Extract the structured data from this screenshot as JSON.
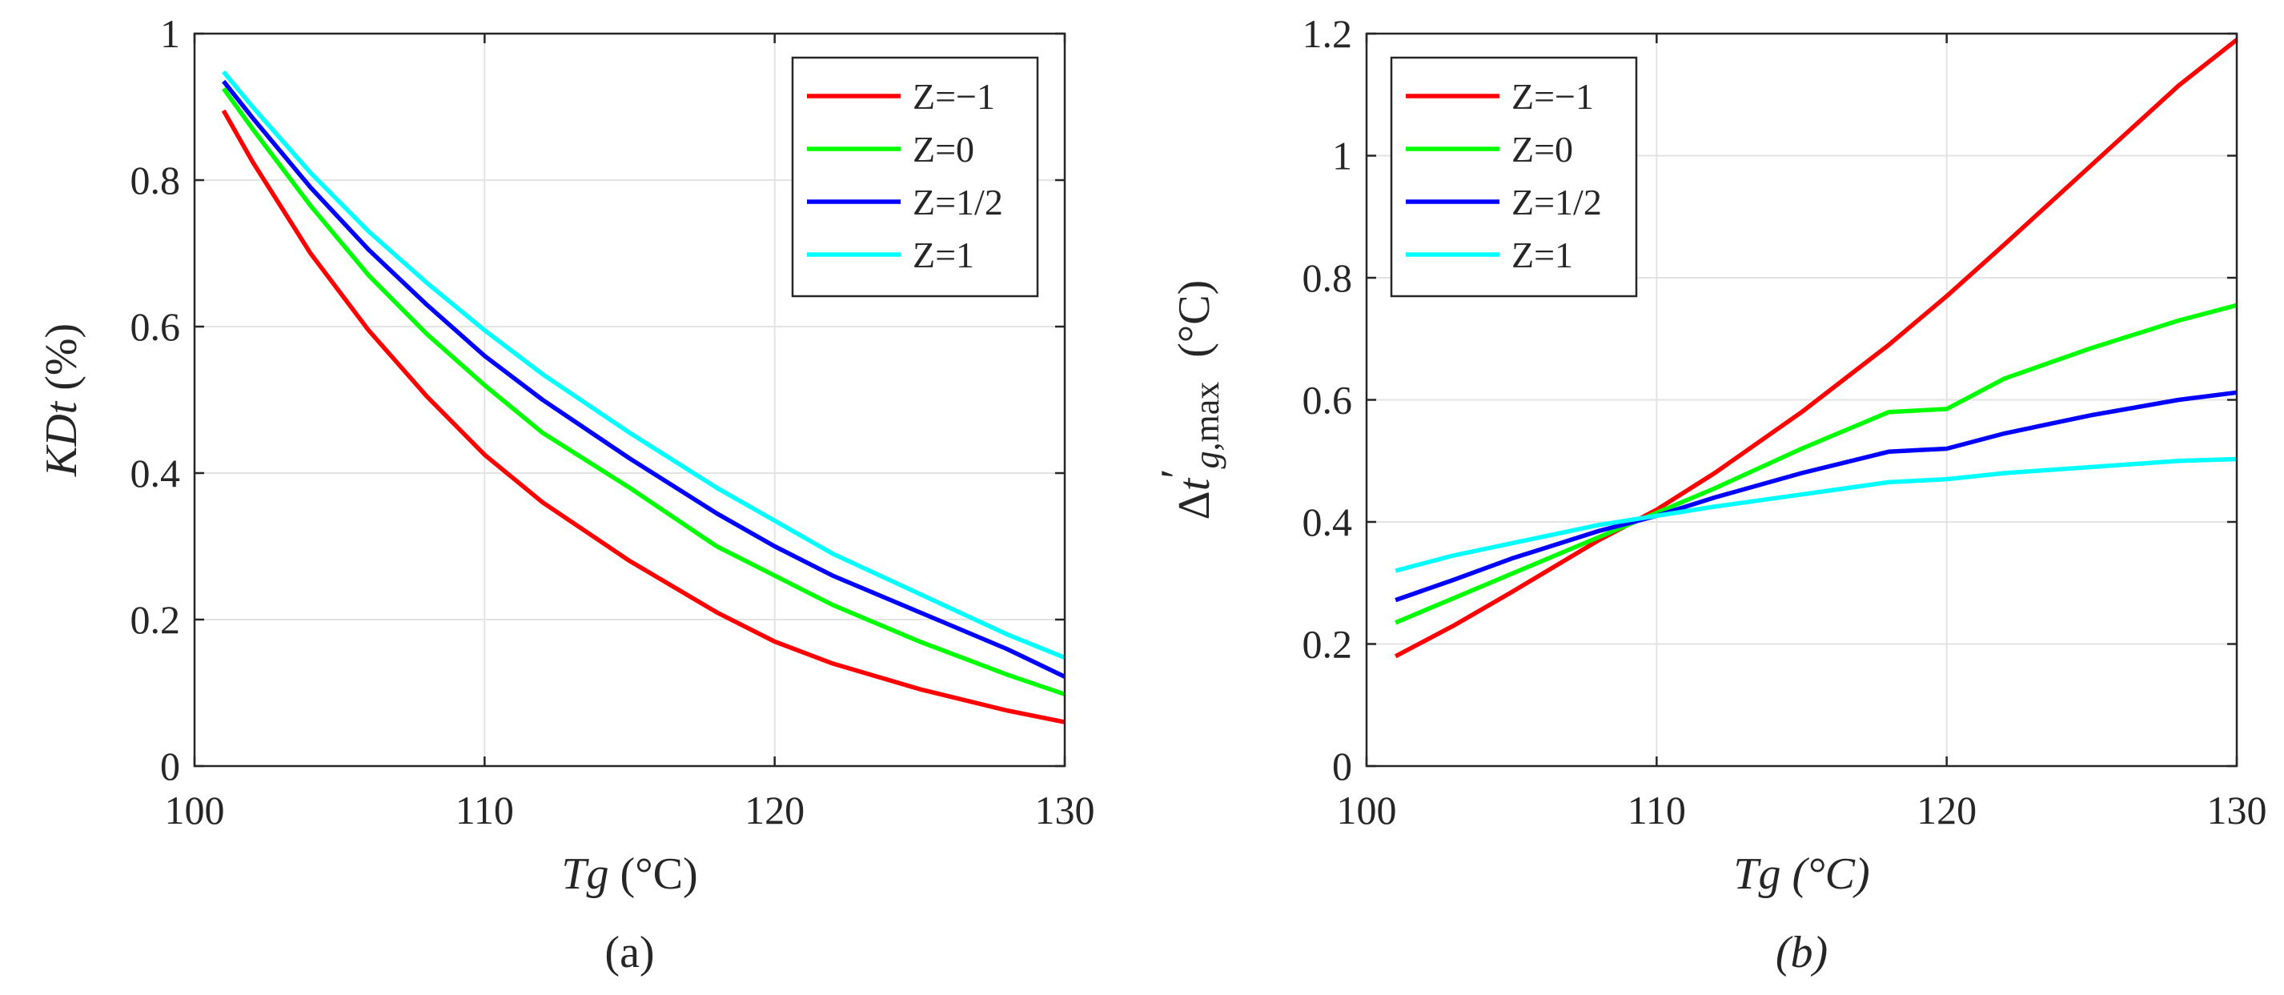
{
  "colors": {
    "series": [
      "#ff0000",
      "#00ff00",
      "#0000ff",
      "#00ffff"
    ],
    "axis": "#262626",
    "grid": "#e3e3e3"
  },
  "chart_data": [
    {
      "id": "a",
      "type": "line",
      "caption": "(a)",
      "xlabel": {
        "italic": "Tg",
        "unit": " (°C)"
      },
      "ylabel": {
        "italic": "KDt",
        "unit": " (%)"
      },
      "xlim": [
        100,
        130
      ],
      "ylim": [
        0,
        1
      ],
      "xticks": [
        "100",
        "110",
        "120",
        "130"
      ],
      "yticks": [
        "0",
        "0.2",
        "0.4",
        "0.6",
        "0.8",
        "1"
      ],
      "grid": true,
      "legend_position": "top-right",
      "x": [
        101,
        102,
        104,
        106,
        108,
        110,
        112,
        115,
        118,
        120,
        122,
        125,
        128,
        130
      ],
      "series": [
        {
          "name": "Z=−1",
          "values": [
            0.895,
            0.825,
            0.7,
            0.595,
            0.505,
            0.425,
            0.36,
            0.28,
            0.21,
            0.17,
            0.14,
            0.105,
            0.076,
            0.06
          ]
        },
        {
          "name": "Z=0",
          "values": [
            0.925,
            0.87,
            0.765,
            0.67,
            0.59,
            0.52,
            0.455,
            0.38,
            0.3,
            0.26,
            0.22,
            0.17,
            0.125,
            0.098
          ]
        },
        {
          "name": "Z=1/2",
          "values": [
            0.935,
            0.885,
            0.79,
            0.705,
            0.63,
            0.56,
            0.5,
            0.42,
            0.345,
            0.3,
            0.26,
            0.21,
            0.16,
            0.122
          ]
        },
        {
          "name": "Z=1",
          "values": [
            0.948,
            0.9,
            0.81,
            0.73,
            0.66,
            0.595,
            0.535,
            0.455,
            0.38,
            0.335,
            0.29,
            0.235,
            0.18,
            0.148
          ]
        }
      ]
    },
    {
      "id": "b",
      "type": "line",
      "caption": "(b)",
      "xlabel": {
        "italic": "Tg",
        "unit": " (°C)"
      },
      "ylabel": {
        "delta": "Δ",
        "italic": "t",
        "prime": "′",
        "sub_italic": "g,",
        "sub": "max",
        "unit": "(°C)"
      },
      "xlim": [
        100,
        130
      ],
      "ylim": [
        0,
        1.2
      ],
      "xticks": [
        "100",
        "110",
        "120",
        "130"
      ],
      "yticks": [
        "0",
        "0.2",
        "0.4",
        "0.6",
        "0.8",
        "1",
        "1.2"
      ],
      "grid": true,
      "legend_position": "top-left",
      "x": [
        101,
        103,
        105,
        108,
        110,
        112,
        115,
        118,
        120,
        122,
        125,
        128,
        130
      ],
      "series": [
        {
          "name": "Z=−1",
          "values": [
            0.18,
            0.23,
            0.285,
            0.37,
            0.42,
            0.48,
            0.58,
            0.69,
            0.77,
            0.855,
            0.985,
            1.115,
            1.19
          ]
        },
        {
          "name": "Z=0",
          "values": [
            0.235,
            0.275,
            0.315,
            0.375,
            0.415,
            0.455,
            0.52,
            0.58,
            0.585,
            0.635,
            0.685,
            0.73,
            0.755
          ]
        },
        {
          "name": "Z=1/2",
          "values": [
            0.272,
            0.305,
            0.34,
            0.385,
            0.41,
            0.44,
            0.48,
            0.515,
            0.52,
            0.545,
            0.575,
            0.6,
            0.612
          ]
        },
        {
          "name": "Z=1",
          "values": [
            0.32,
            0.345,
            0.365,
            0.395,
            0.41,
            0.425,
            0.445,
            0.465,
            0.47,
            0.48,
            0.49,
            0.5,
            0.503
          ]
        }
      ]
    }
  ]
}
